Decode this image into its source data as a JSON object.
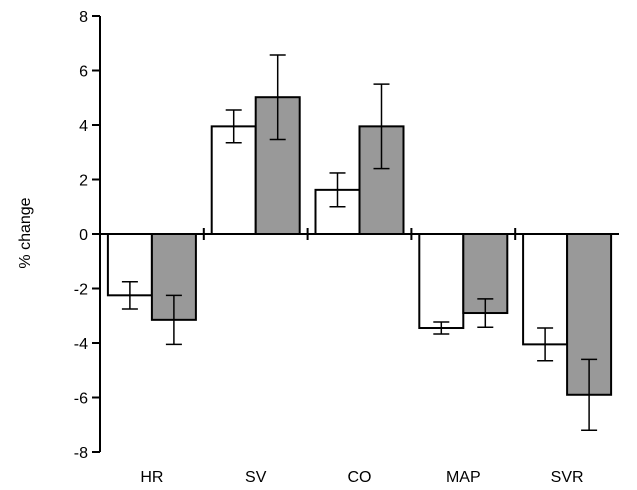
{
  "chart_data": {
    "type": "bar",
    "title": "",
    "xlabel": "",
    "ylabel": "% change",
    "ylim": [
      -8,
      8
    ],
    "yticks": [
      8,
      6,
      4,
      2,
      0,
      -2,
      -4,
      -6,
      -8
    ],
    "categories": [
      "HR",
      "SV",
      "CO",
      "MAP",
      "SVR"
    ],
    "grid": false,
    "legend": "none",
    "series": [
      {
        "color": "#ffffff",
        "values": [
          -2.25,
          3.95,
          1.62,
          -3.45,
          -4.05
        ],
        "errors": [
          0.5,
          0.6,
          0.62,
          0.22,
          0.6
        ]
      },
      {
        "color": "#999999",
        "values": [
          -3.15,
          5.02,
          3.95,
          -2.9,
          -5.9
        ],
        "errors": [
          0.9,
          1.55,
          1.55,
          0.52,
          1.3
        ]
      }
    ]
  }
}
